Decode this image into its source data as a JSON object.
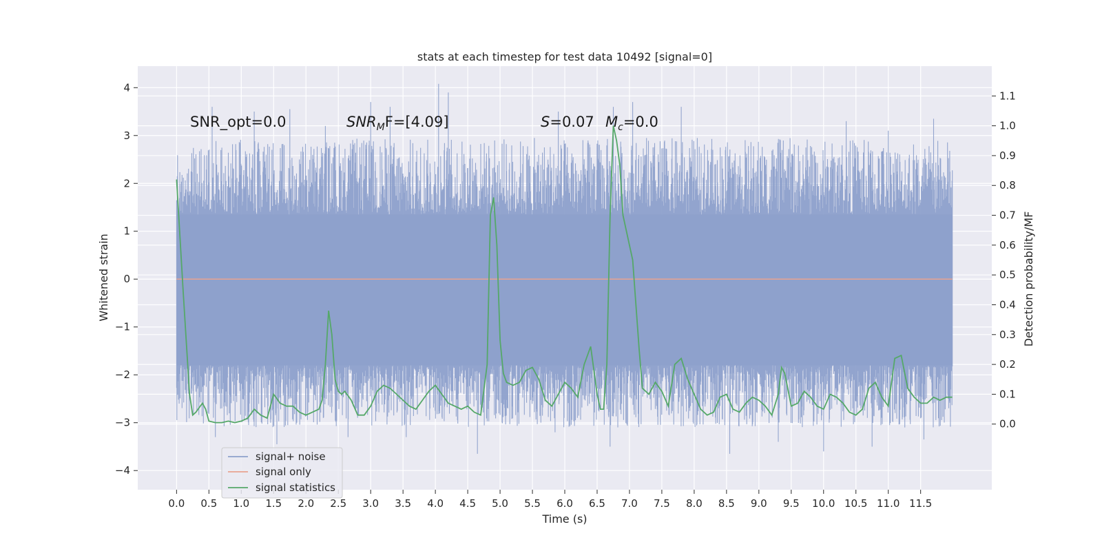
{
  "chart_data": {
    "type": "line",
    "title": "stats at each timestep for test data 10492 [signal=0]",
    "xlabel": "Time (s)",
    "ylabel": "Whitened strain",
    "y2label": "Detection probability/MF",
    "xlim": [
      -0.6,
      12.6
    ],
    "ylim": [
      -4.4,
      4.45
    ],
    "y2lim": [
      -0.22,
      1.2
    ],
    "x_ticks": [
      0.0,
      0.5,
      1.0,
      1.5,
      2.0,
      2.5,
      3.0,
      3.5,
      4.0,
      4.5,
      5.0,
      5.5,
      6.0,
      6.5,
      7.0,
      7.5,
      8.0,
      8.5,
      9.0,
      9.5,
      10.0,
      10.5,
      11.0,
      11.5
    ],
    "x_tick_labels": [
      "0.0",
      "0.5",
      "1.0",
      "1.5",
      "2.0",
      "2.5",
      "3.0",
      "3.5",
      "4.0",
      "4.5",
      "5.0",
      "5.5",
      "6.0",
      "6.5",
      "7.0",
      "7.5",
      "8.0",
      "8.5",
      "9.0",
      "9.5",
      "10.0",
      "10.5",
      "11.0",
      "11.5"
    ],
    "y_ticks": [
      -4,
      -3,
      -2,
      -1,
      0,
      1,
      2,
      3,
      4
    ],
    "y_tick_labels": [
      "−4",
      "−3",
      "−2",
      "−1",
      "0",
      "1",
      "2",
      "3",
      "4"
    ],
    "y2_ticks": [
      0.0,
      0.1,
      0.2,
      0.3,
      0.4,
      0.5,
      0.6,
      0.7,
      0.8,
      0.9,
      1.0,
      1.1
    ],
    "y2_tick_labels": [
      "0.0",
      "0.1",
      "0.2",
      "0.3",
      "0.4",
      "0.5",
      "0.6",
      "0.7",
      "0.8",
      "0.9",
      "1.0",
      "1.1"
    ],
    "grid": true,
    "legend_position": "bottom-left",
    "annotations": {
      "snr_opt": "SNR_opt=0.0",
      "snr_mf_math": "SNR",
      "snr_mf_sub": "M",
      "snr_mf_tail": "F=[4.09]",
      "s_math": "S",
      "s_tail": "=0.07",
      "mc_math": "M",
      "mc_sub": "c",
      "mc_tail": "=0.0"
    },
    "series": [
      {
        "name": "signal+ noise",
        "color": "#8da0cb",
        "axis": "left",
        "x_range": [
          0.0,
          11.99
        ],
        "core_band": [
          -1.8,
          1.35
        ],
        "envelope_max": 4.08,
        "envelope_min": -3.65,
        "peaks": [
          {
            "x": 0.55,
            "y": 3.6
          },
          {
            "x": 1.2,
            "y": 3.5
          },
          {
            "x": 1.75,
            "y": 3.55
          },
          {
            "x": 2.3,
            "y": 3.2
          },
          {
            "x": 3.0,
            "y": 3.7
          },
          {
            "x": 3.3,
            "y": 3.6
          },
          {
            "x": 4.05,
            "y": 4.08
          },
          {
            "x": 4.2,
            "y": 3.9
          },
          {
            "x": 5.9,
            "y": 3.5
          },
          {
            "x": 6.75,
            "y": 3.6
          },
          {
            "x": 7.05,
            "y": 3.7
          },
          {
            "x": 7.8,
            "y": 3.6
          },
          {
            "x": 10.35,
            "y": 3.3
          },
          {
            "x": 11.0,
            "y": 3.1
          },
          {
            "x": 11.7,
            "y": 3.35
          }
        ],
        "troughs": [
          {
            "x": 0.6,
            "y": -3.3
          },
          {
            "x": 1.55,
            "y": -3.45
          },
          {
            "x": 2.65,
            "y": -3.3
          },
          {
            "x": 3.55,
            "y": -3.3
          },
          {
            "x": 4.65,
            "y": -3.65
          },
          {
            "x": 5.85,
            "y": -3.2
          },
          {
            "x": 6.7,
            "y": -3.5
          },
          {
            "x": 8.55,
            "y": -3.65
          },
          {
            "x": 9.3,
            "y": -3.4
          },
          {
            "x": 10.0,
            "y": -3.6
          },
          {
            "x": 10.75,
            "y": -3.5
          },
          {
            "x": 11.55,
            "y": -3.35
          }
        ]
      },
      {
        "name": "signal only",
        "color": "#e9a38f",
        "axis": "left",
        "x": [
          0.0,
          11.99
        ],
        "y": [
          0.0,
          0.0
        ]
      },
      {
        "name": "signal statistics",
        "color": "#55a868",
        "axis": "right",
        "x": [
          0.0,
          0.1,
          0.2,
          0.25,
          0.3,
          0.4,
          0.45,
          0.5,
          0.6,
          0.7,
          0.8,
          0.9,
          1.0,
          1.1,
          1.2,
          1.3,
          1.4,
          1.5,
          1.6,
          1.7,
          1.8,
          1.9,
          2.0,
          2.1,
          2.2,
          2.25,
          2.3,
          2.35,
          2.4,
          2.45,
          2.5,
          2.55,
          2.6,
          2.7,
          2.8,
          2.9,
          3.0,
          3.1,
          3.2,
          3.3,
          3.4,
          3.5,
          3.6,
          3.7,
          3.8,
          3.9,
          4.0,
          4.1,
          4.2,
          4.3,
          4.4,
          4.5,
          4.6,
          4.7,
          4.8,
          4.85,
          4.9,
          4.95,
          5.0,
          5.05,
          5.1,
          5.2,
          5.3,
          5.4,
          5.5,
          5.6,
          5.7,
          5.8,
          5.9,
          6.0,
          6.1,
          6.2,
          6.3,
          6.4,
          6.5,
          6.55,
          6.6,
          6.65,
          6.7,
          6.75,
          6.8,
          6.85,
          6.9,
          7.0,
          7.05,
          7.1,
          7.15,
          7.2,
          7.3,
          7.4,
          7.5,
          7.6,
          7.7,
          7.8,
          7.9,
          8.0,
          8.1,
          8.2,
          8.3,
          8.4,
          8.5,
          8.6,
          8.7,
          8.8,
          8.9,
          9.0,
          9.1,
          9.2,
          9.3,
          9.35,
          9.4,
          9.5,
          9.6,
          9.7,
          9.8,
          9.9,
          10.0,
          10.1,
          10.2,
          10.3,
          10.4,
          10.5,
          10.6,
          10.7,
          10.8,
          10.9,
          11.0,
          11.1,
          11.2,
          11.3,
          11.4,
          11.5,
          11.6,
          11.7,
          11.8,
          11.9,
          11.99
        ],
        "y": [
          0.82,
          0.45,
          0.1,
          0.03,
          0.04,
          0.07,
          0.05,
          0.01,
          0.005,
          0.005,
          0.01,
          0.005,
          0.01,
          0.02,
          0.05,
          0.03,
          0.02,
          0.1,
          0.07,
          0.06,
          0.06,
          0.04,
          0.03,
          0.04,
          0.05,
          0.08,
          0.2,
          0.38,
          0.3,
          0.15,
          0.11,
          0.1,
          0.11,
          0.08,
          0.03,
          0.03,
          0.06,
          0.11,
          0.13,
          0.12,
          0.1,
          0.08,
          0.06,
          0.05,
          0.08,
          0.11,
          0.13,
          0.1,
          0.07,
          0.06,
          0.05,
          0.06,
          0.04,
          0.03,
          0.2,
          0.7,
          0.76,
          0.6,
          0.28,
          0.17,
          0.14,
          0.13,
          0.14,
          0.18,
          0.19,
          0.15,
          0.08,
          0.06,
          0.1,
          0.14,
          0.12,
          0.09,
          0.2,
          0.26,
          0.1,
          0.05,
          0.05,
          0.2,
          0.7,
          1.0,
          0.95,
          0.87,
          0.7,
          0.6,
          0.55,
          0.4,
          0.25,
          0.12,
          0.1,
          0.14,
          0.11,
          0.06,
          0.2,
          0.22,
          0.15,
          0.1,
          0.05,
          0.03,
          0.04,
          0.09,
          0.1,
          0.05,
          0.04,
          0.07,
          0.09,
          0.08,
          0.06,
          0.03,
          0.1,
          0.19,
          0.17,
          0.06,
          0.07,
          0.11,
          0.09,
          0.06,
          0.05,
          0.1,
          0.09,
          0.07,
          0.04,
          0.03,
          0.05,
          0.12,
          0.14,
          0.09,
          0.06,
          0.22,
          0.23,
          0.12,
          0.09,
          0.07,
          0.07,
          0.09,
          0.08,
          0.09,
          0.09
        ]
      }
    ]
  }
}
